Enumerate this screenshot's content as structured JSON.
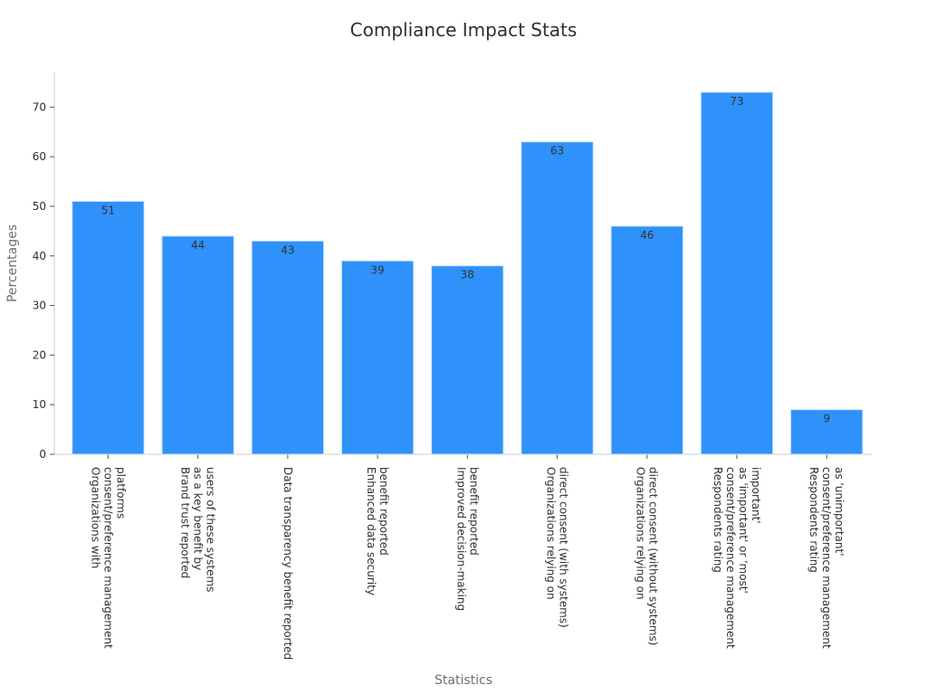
{
  "chart_data": {
    "type": "bar",
    "title": "Compliance Impact Stats",
    "xlabel": "Statistics",
    "ylabel": "Percentages",
    "categories": [
      "Organizations with\nconsent/preference management\nplatforms",
      "Brand trust reported\nas a key benefit by\nusers of these systems",
      "Data transparency benefit reported",
      "Enhanced data security\nbenefit reported",
      "Improved decision-making\nbenefit reported",
      "Organizations relying on\ndirect consent (with systems)",
      "Organizations relying on\ndirect consent (without systems)",
      "Respondents rating\nconsent/preference management\nas 'important' or 'most'\nimportant'",
      "Respondents rating\nconsent/preference management\nas 'unimportant'"
    ],
    "values": [
      51,
      44,
      43,
      39,
      38,
      63,
      46,
      73,
      9
    ],
    "ylim": [
      0,
      77
    ],
    "yticks": [
      0,
      10,
      20,
      30,
      40,
      50,
      60,
      70
    ],
    "grid": false,
    "bar_color": "#2f92fa",
    "bar_edge_color": "#cfe3fb"
  }
}
